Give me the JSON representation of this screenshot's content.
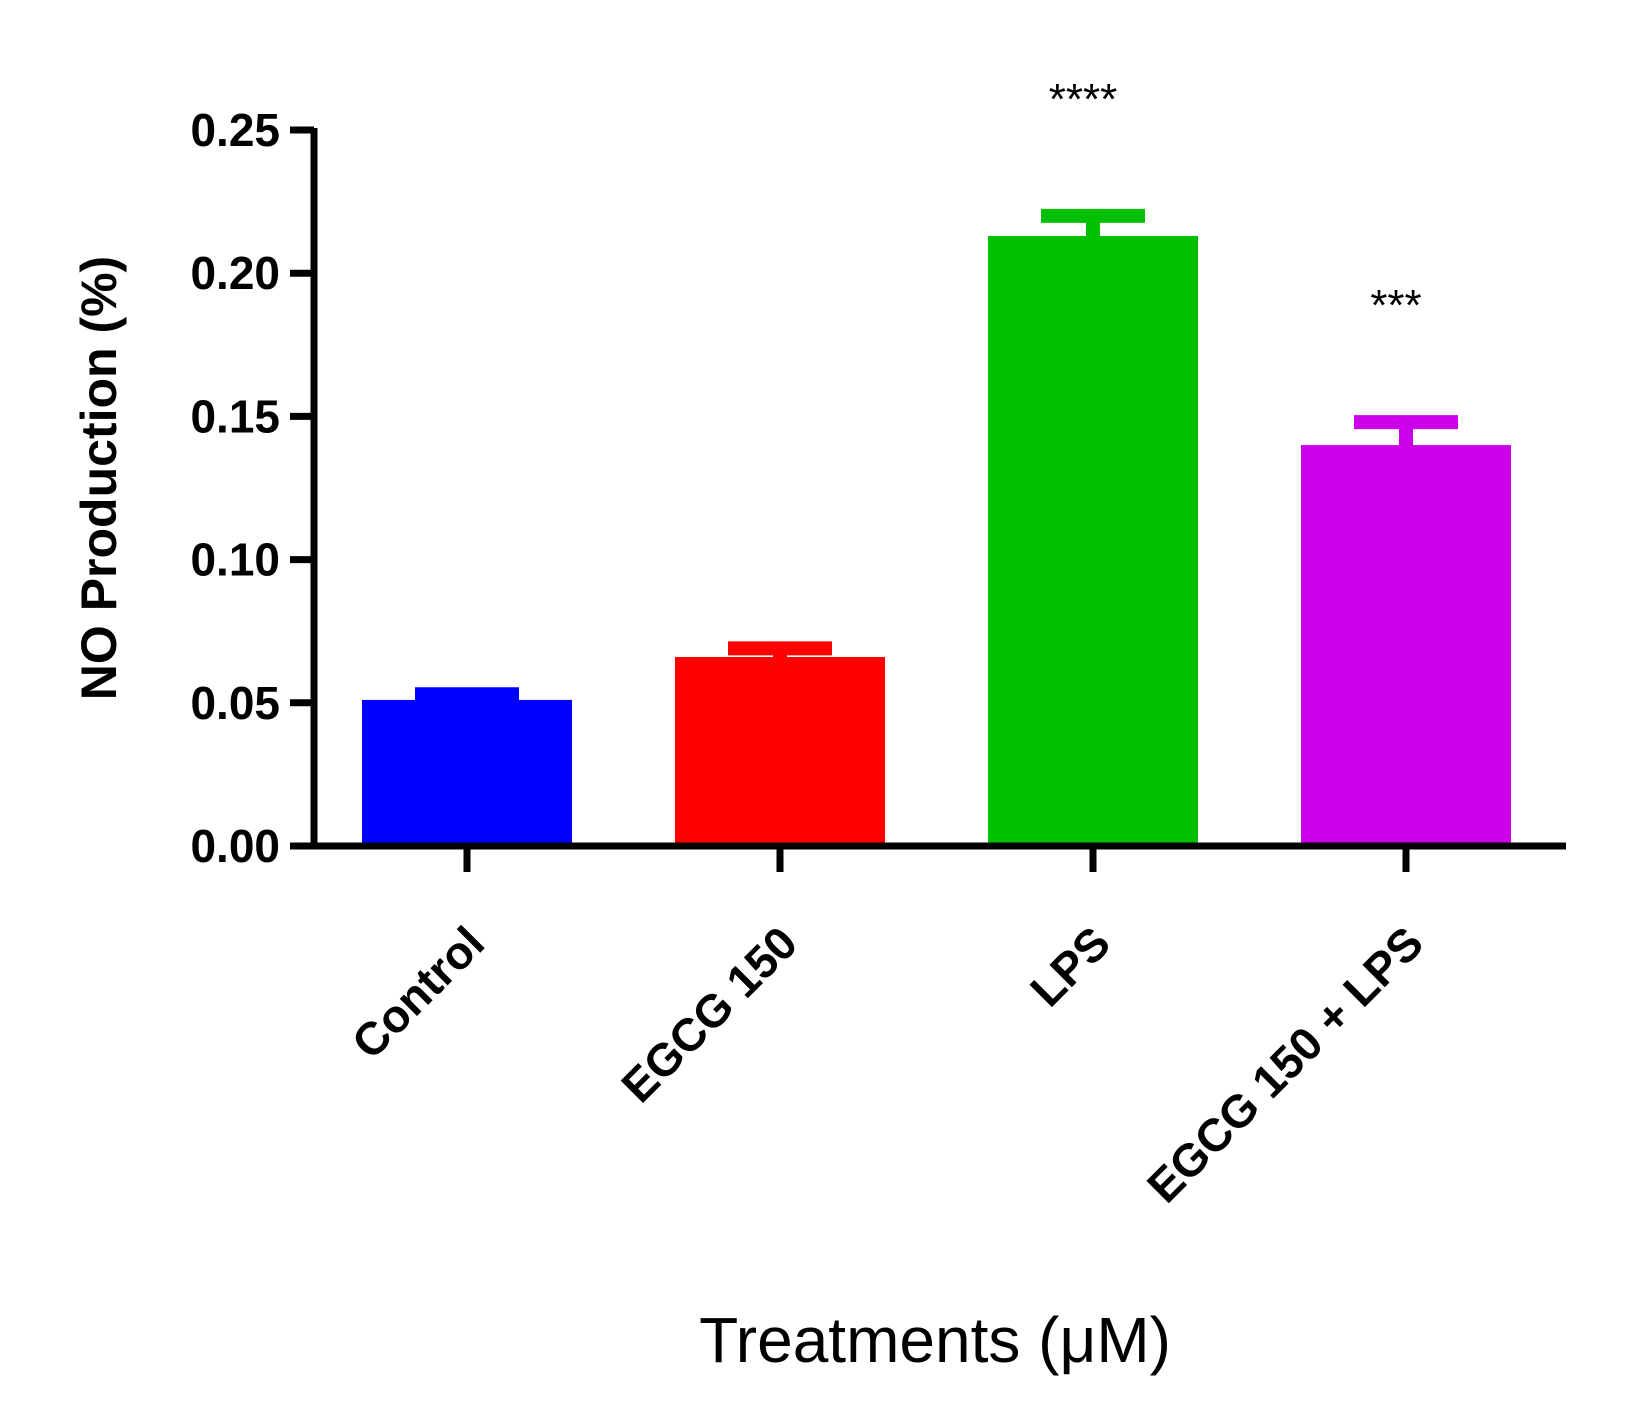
{
  "chart_data": {
    "type": "bar",
    "title": "",
    "xlabel": "Treatments (μM)",
    "ylabel": "NO Production (%)",
    "ylim": [
      0,
      0.25
    ],
    "yticks": [
      "0.00",
      "0.05",
      "0.10",
      "0.15",
      "0.20",
      "0.25"
    ],
    "categories": [
      "Control",
      "EGCG 150",
      "LPS",
      "EGCG 150 + LPS"
    ],
    "values": [
      0.051,
      0.066,
      0.213,
      0.14
    ],
    "errors": [
      0.002,
      0.003,
      0.007,
      0.008
    ],
    "colors": [
      "#0000ff",
      "#ff0000",
      "#00c000",
      "#cc00e8"
    ],
    "significance": [
      "",
      "",
      "****",
      "***"
    ],
    "grid": false,
    "legend": "none"
  }
}
